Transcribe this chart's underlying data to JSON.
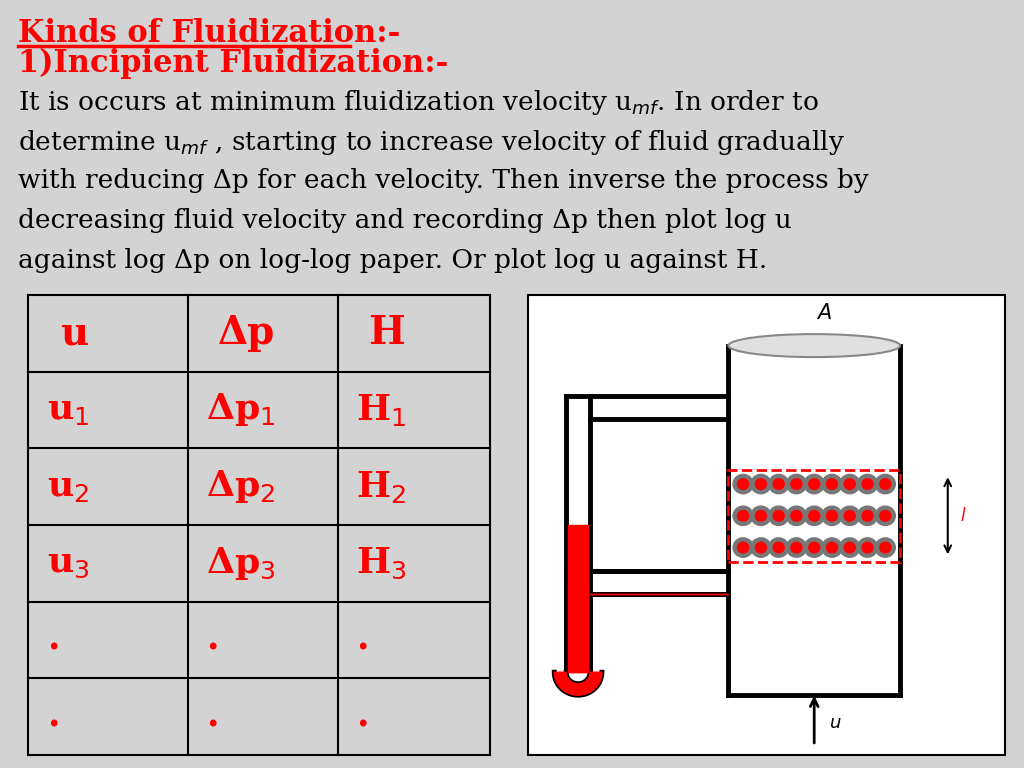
{
  "bg_color": "#d3d3d3",
  "title1": "Kinds of Fluidization:-",
  "title2": "1)Incipient Fluidization:-",
  "body_lines": [
    "It is occurs at minimum fluidization velocity u$_{mf}$. In order to",
    "determine u$_{mf}$ , starting to increase velocity of fluid gradually",
    "with reducing Δp for each velocity. Then inverse the process by",
    "decreasing fluid velocity and recording Δp then plot log u",
    "against log Δp on log-log paper. Or plot log u against H."
  ],
  "red_color": "#ff0000",
  "black_color": "#000000",
  "col_headers": [
    "u",
    "Δp",
    "H"
  ],
  "table_rows": [
    [
      "u$_1$",
      "Δp$_1$",
      "H$_1$"
    ],
    [
      "u$_2$",
      "Δp$_2$",
      "H$_2$"
    ],
    [
      "u$_3$",
      "Δp$_3$",
      "H$_3$"
    ],
    [
      ".",
      ".",
      "."
    ],
    [
      ".",
      ".",
      "."
    ]
  ]
}
